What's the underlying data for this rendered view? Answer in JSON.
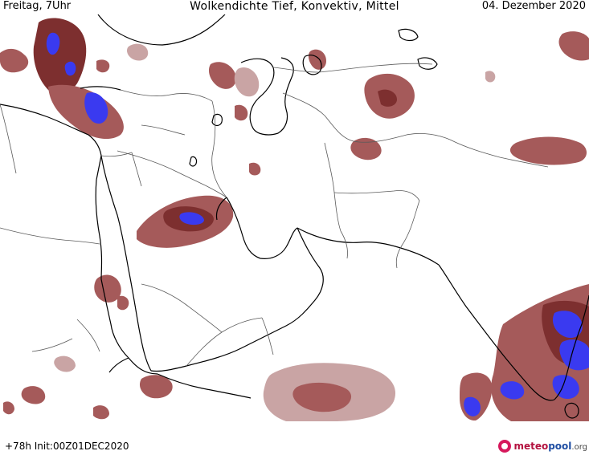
{
  "header": {
    "day": "Freitag, 7Uhr",
    "title": "Wolkendichte   Tief, Konvektiv, Mittel",
    "date": "04. Dezember 2020"
  },
  "footer": {
    "run": "+78h  Init:00Z01DEC2020"
  },
  "logo": {
    "part1": "meteo",
    "part2": "pool",
    "part3": ".org"
  },
  "colors": {
    "cloud_low": "#c9a4a4",
    "cloud_mid": "#a55a5a",
    "cloud_dense": "#7d2f2f",
    "convective": "#3a3af0",
    "coastline": "#000000",
    "border": "#5a5a5a"
  }
}
